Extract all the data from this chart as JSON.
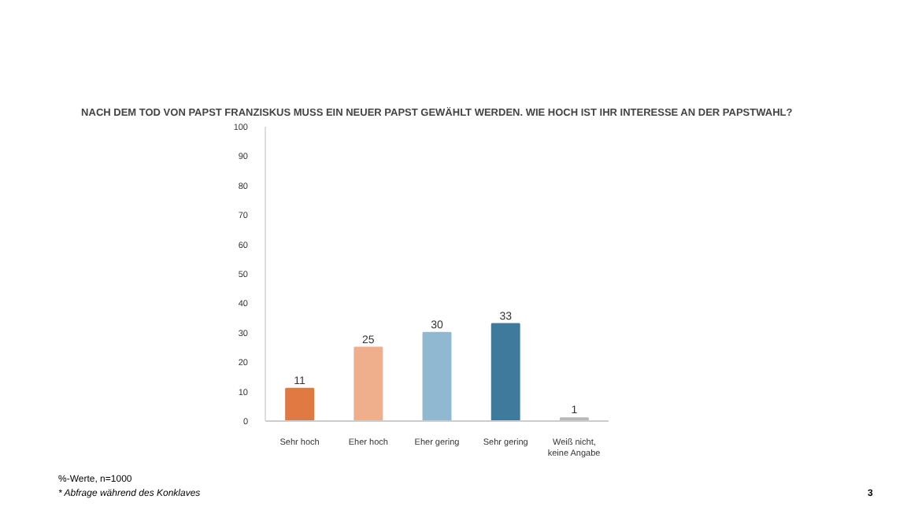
{
  "chart_data": {
    "type": "bar",
    "title": "NACH DEM TOD VON PAPST FRANZISKUS MUSS EIN NEUER PAPST GEWÄHLT WERDEN. WIE HOCH IST IHR INTERESSE AN DER PAPSTWAHL?",
    "categories": [
      "Sehr hoch",
      "Eher hoch",
      "Eher gering",
      "Sehr gering",
      "Weiß nicht, keine Angabe"
    ],
    "values": [
      11,
      25,
      30,
      33,
      1
    ],
    "colors": [
      "#e07a42",
      "#efae8c",
      "#90b8d0",
      "#3f7a9c",
      "#b8b8b8"
    ],
    "ylim": [
      0,
      100
    ],
    "yticks": [
      0,
      10,
      20,
      30,
      40,
      50,
      60,
      70,
      80,
      90,
      100
    ],
    "data_labels": true,
    "grid": false,
    "annotations": [
      "%-Werte, n=1000",
      "* Abfrage während des Konklaves",
      "3"
    ]
  }
}
